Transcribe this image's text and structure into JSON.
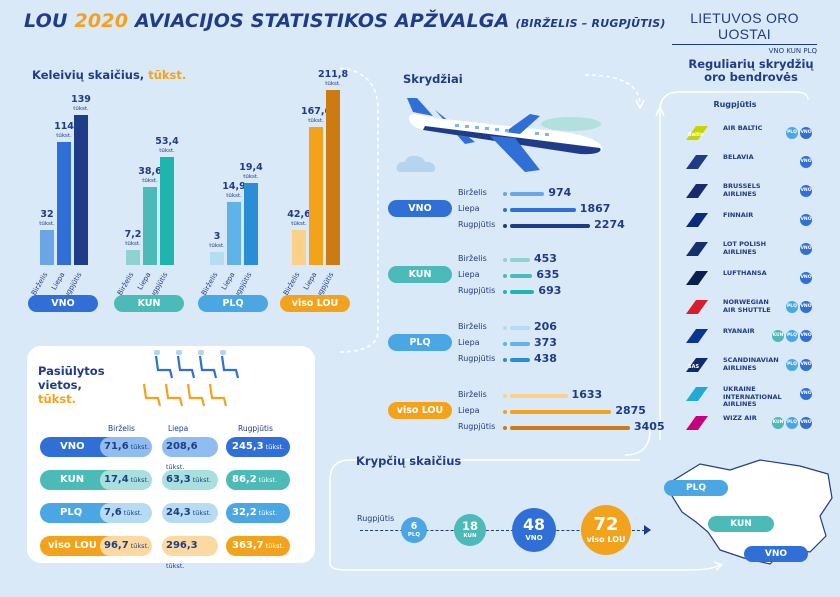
{
  "header": {
    "title_a": "LOU ",
    "title_year": "2020",
    "title_b": " AVIACIJOS STATISTIKOS APŽVALGA",
    "subtitle": "(BIRŽELIS – RUGPJŪTIS)",
    "logo_main": "LIETUVOS ORO UOSTAI",
    "logo_sub": "VNO KUN PLQ"
  },
  "passengers": {
    "title": "Keleivių skaičius,",
    "title_unit": "tūkst.",
    "months": [
      "Birželis",
      "Liepa",
      "Rugpjūtis"
    ],
    "unit": "tūkst.",
    "groups": [
      {
        "label": "VNO",
        "values": [
          "32",
          "114",
          "139"
        ],
        "numbers": [
          32,
          114,
          139
        ],
        "colors": [
          "#6aa6e6",
          "#2f6fd6",
          "#1f3c88"
        ],
        "pill_color": "#2f6fd6"
      },
      {
        "label": "KUN",
        "values": [
          "7,2",
          "38,6",
          "53,4"
        ],
        "numbers": [
          7.2,
          38.6,
          53.4
        ],
        "colors": [
          "#8fd3d0",
          "#4cbab6",
          "#1fb5ad"
        ],
        "pill_color": "#4cbab6"
      },
      {
        "label": "PLQ",
        "values": [
          "3",
          "14,9",
          "19,4"
        ],
        "numbers": [
          3,
          14.9,
          19.4
        ],
        "colors": [
          "#b5dcf3",
          "#5fb3e6",
          "#2a8ed6"
        ],
        "pill_color": "#4aa7e4"
      },
      {
        "label": "viso LOU",
        "values": [
          "42,6",
          "167,6",
          "211,8"
        ],
        "numbers": [
          42.6,
          167.6,
          211.8
        ],
        "colors": [
          "#fbd089",
          "#f3a21c",
          "#cc7a12"
        ],
        "pill_color": "#f3a21c"
      }
    ]
  },
  "flights": {
    "title": "Skrydžiai",
    "groups": [
      {
        "label": "VNO",
        "color": "#2f6fd6",
        "rows": [
          {
            "month": "Birželis",
            "value": "974",
            "n": 974,
            "color": "#6aa6e6"
          },
          {
            "month": "Liepa",
            "value": "1867",
            "n": 1867,
            "color": "#2f6fd6"
          },
          {
            "month": "Rugpjūtis",
            "value": "2274",
            "n": 2274,
            "color": "#1f3c88"
          }
        ]
      },
      {
        "label": "KUN",
        "color": "#4cbab6",
        "rows": [
          {
            "month": "Birželis",
            "value": "453",
            "n": 453,
            "color": "#8fd3d0"
          },
          {
            "month": "Liepa",
            "value": "635",
            "n": 635,
            "color": "#4cbab6"
          },
          {
            "month": "Rugpjūtis",
            "value": "693",
            "n": 693,
            "color": "#1fb5ad"
          }
        ]
      },
      {
        "label": "PLQ",
        "color": "#4aa7e4",
        "rows": [
          {
            "month": "Birželis",
            "value": "206",
            "n": 206,
            "color": "#b5dcf3"
          },
          {
            "month": "Liepa",
            "value": "373",
            "n": 373,
            "color": "#5fb3e6"
          },
          {
            "month": "Rugpjūtis",
            "value": "438",
            "n": 438,
            "color": "#2a8ed6"
          }
        ]
      },
      {
        "label": "viso LOU",
        "color": "#f3a21c",
        "rows": [
          {
            "month": "Birželis",
            "value": "1633",
            "n": 1633,
            "color": "#fbd089"
          },
          {
            "month": "Liepa",
            "value": "2875",
            "n": 2875,
            "color": "#f3a21c"
          },
          {
            "month": "Rugpjūtis",
            "value": "3405",
            "n": 3405,
            "color": "#cc7a12"
          }
        ]
      }
    ]
  },
  "seats": {
    "title_1": "Pasiūlytos",
    "title_2": "vietos,",
    "title_unit": "tūkst.",
    "months": [
      "Birželis",
      "Liepa",
      "Rugpjūtis"
    ],
    "unit": "tūkst.",
    "rows": [
      {
        "label": "VNO",
        "values": [
          "71,6",
          "208,6",
          "245,3"
        ],
        "c1": "#2f6fd6",
        "c2": "#8fbdf0",
        "c3": "#2f6fd6"
      },
      {
        "label": "KUN",
        "values": [
          "17,4",
          "63,3",
          "86,2"
        ],
        "c1": "#4cbab6",
        "c2": "#a8e0dd",
        "c3": "#4cbab6"
      },
      {
        "label": "PLQ",
        "values": [
          "7,6",
          "24,3",
          "32,2"
        ],
        "c1": "#4aa7e4",
        "c2": "#b5dcf3",
        "c3": "#4aa7e4"
      },
      {
        "label": "viso LOU",
        "values": [
          "96,7",
          "296,3",
          "363,7"
        ],
        "c1": "#f3a21c",
        "c2": "#fcd9a0",
        "c3": "#f3a21c"
      }
    ]
  },
  "directions": {
    "title": "Krypčių skaičius",
    "month": "Rugpjūtis",
    "items": [
      {
        "value": "6",
        "label": "PLQ",
        "color": "#4aa7e4"
      },
      {
        "value": "18",
        "label": "KUN",
        "color": "#4cbab6"
      },
      {
        "value": "48",
        "label": "VNO",
        "color": "#2f6fd6"
      },
      {
        "value": "72",
        "label": "viso LOU",
        "color": "#f3a21c"
      }
    ],
    "map_labels": [
      {
        "label": "PLQ"
      },
      {
        "label": "KUN"
      },
      {
        "label": "VNO"
      }
    ]
  },
  "airlines": {
    "title": "Reguliarių skrydžių oro bendrovės",
    "month": "Rugpjūtis",
    "list": [
      {
        "name": "AIR BALTIC",
        "logo_text": "Baltic",
        "logo_color": "#c8d400",
        "badges": [
          "PLQ",
          "VNO"
        ]
      },
      {
        "name": "BELAVIA",
        "logo_text": "",
        "logo_color": "#1f3c88",
        "badges": [
          "VNO"
        ]
      },
      {
        "name": "BRUSSELS\nAIRLINES",
        "logo_text": "",
        "logo_color": "#1a2a6c",
        "badges": [
          "VNO"
        ]
      },
      {
        "name": "FINNAIR",
        "logo_text": "",
        "logo_color": "#0b2a7a",
        "badges": [
          "VNO"
        ]
      },
      {
        "name": "LOT POLISH\nAIRLINES",
        "logo_text": "",
        "logo_color": "#15306e",
        "badges": [
          "VNO"
        ]
      },
      {
        "name": "LUFTHANSA",
        "logo_text": "",
        "logo_color": "#0b1f4f",
        "badges": [
          "VNO"
        ]
      },
      {
        "name": "NORWEGIAN\nAIR SHUTTLE",
        "logo_text": "",
        "logo_color": "#d81e2a",
        "badges": [
          "PLQ",
          "VNO"
        ]
      },
      {
        "name": "RYANAIR",
        "logo_text": "",
        "logo_color": "#073590",
        "badges": [
          "KUN",
          "PLQ",
          "VNO"
        ]
      },
      {
        "name": "SCANDINAVIAN\nAIRLINES",
        "logo_text": "SAS",
        "logo_color": "#0e2a6b",
        "badges": [
          "PLQ",
          "VNO"
        ]
      },
      {
        "name": "UKRAINE\nINTERNATIONAL\nAIRLINES",
        "logo_text": "",
        "logo_color": "#23a9d6",
        "badges": [
          "VNO"
        ]
      },
      {
        "name": "WIZZ AIR",
        "logo_text": "",
        "logo_color": "#c6007e",
        "badges": [
          "KUN",
          "PLQ",
          "VNO"
        ]
      }
    ],
    "badge_colors": {
      "VNO": "#2f6fd6",
      "KUN": "#4cbab6",
      "PLQ": "#4aa7e4"
    }
  }
}
